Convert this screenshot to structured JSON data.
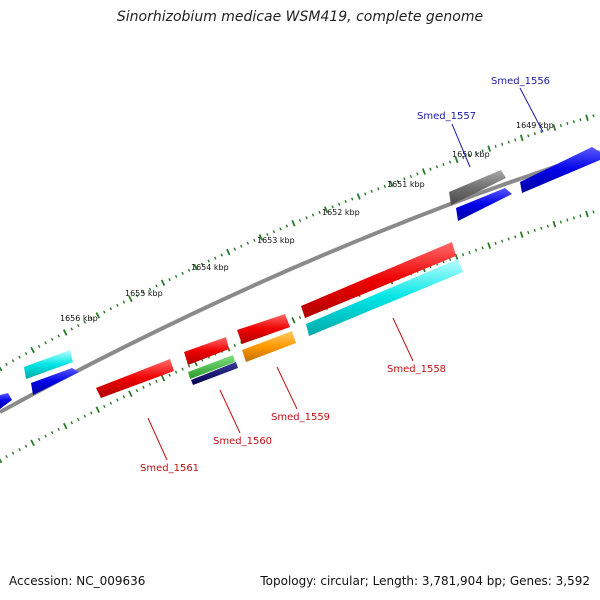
{
  "title": "Sinorhizobium medicae WSM419, complete genome",
  "footer": {
    "accession": "Accession: NC_009636",
    "summary": "Topology: circular; Length: 3,781,904 bp; Genes: 3,592"
  },
  "colors": {
    "backbone": "#8a8a8a",
    "tick": "#2a7a2a",
    "label_forward": "#1a1aa8",
    "label_reverse": "#c01010"
  },
  "kbp_labels": [
    "1649 kbp",
    "1650 kbp",
    "1651 kbp",
    "1652 kbp",
    "1653 kbp",
    "1654 kbp",
    "1655 kbp",
    "1656 kbp"
  ],
  "genes": [
    {
      "id": "Smed_1556",
      "label": "Smed_1556",
      "strand": "forward"
    },
    {
      "id": "Smed_1557",
      "label": "Smed_1557",
      "strand": "forward"
    },
    {
      "id": "Smed_1558",
      "label": "Smed_1558",
      "strand": "reverse"
    },
    {
      "id": "Smed_1559",
      "label": "Smed_1559",
      "strand": "reverse"
    },
    {
      "id": "Smed_1560",
      "label": "Smed_1560",
      "strand": "reverse"
    },
    {
      "id": "Smed_1561",
      "label": "Smed_1561",
      "strand": "reverse"
    }
  ]
}
